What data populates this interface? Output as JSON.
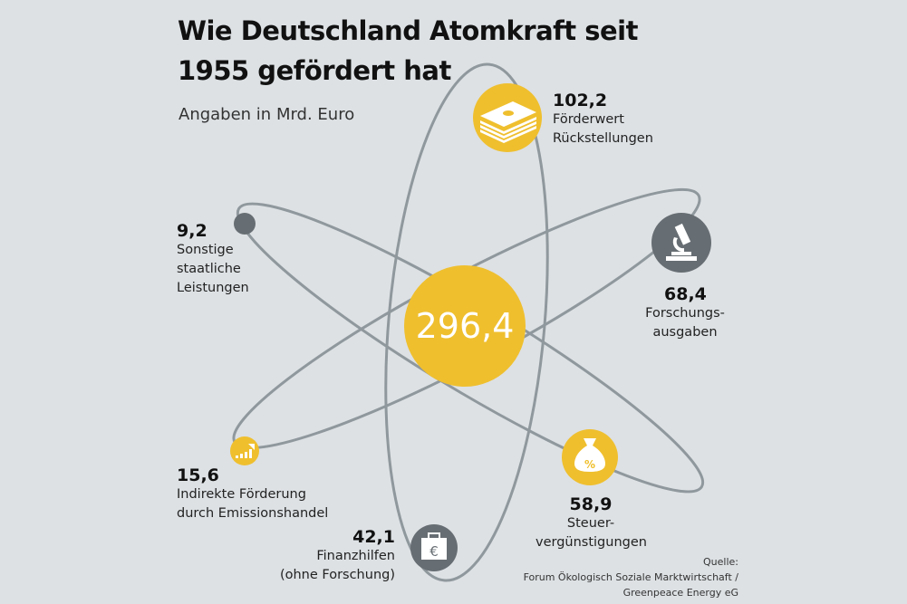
{
  "title": "Wie Deutschland Atomkraft seit 1955 gefördert hat",
  "subtitle": "Angaben in Mrd. Euro",
  "total": "296,4",
  "items": [
    {
      "value": "102,2",
      "label_lines": [
        "Förderwert",
        "Rückstellungen"
      ],
      "icon": "money-stack-icon"
    },
    {
      "value": "68,4",
      "label_lines": [
        "Forschungs-",
        "ausgaben"
      ],
      "icon": "microscope-icon"
    },
    {
      "value": "58,9",
      "label_lines": [
        "Steuer-",
        "vergünstigungen"
      ],
      "icon": "money-bag-percent-icon"
    },
    {
      "value": "42,1",
      "label_lines": [
        "Finanzhilfen",
        "(ohne Forschung)"
      ],
      "icon": "euro-briefcase-icon"
    },
    {
      "value": "15,6",
      "label_lines": [
        "Indirekte Förderung",
        "durch Emissionshandel"
      ],
      "icon": "rising-bars-icon"
    },
    {
      "value": "9,2",
      "label_lines": [
        "Sonstige",
        "staatliche",
        "Leistungen"
      ],
      "icon": "dot"
    }
  ],
  "source": {
    "heading": "Quelle:",
    "line1": "Forum Ökologisch Soziale Marktwirtschaft /",
    "line2": "Greenpeace Energy eG"
  },
  "colors": {
    "background": "#dde1e4",
    "yellow": "#efbf2e",
    "grey": "#676e73",
    "orbit": "#8f989d"
  }
}
